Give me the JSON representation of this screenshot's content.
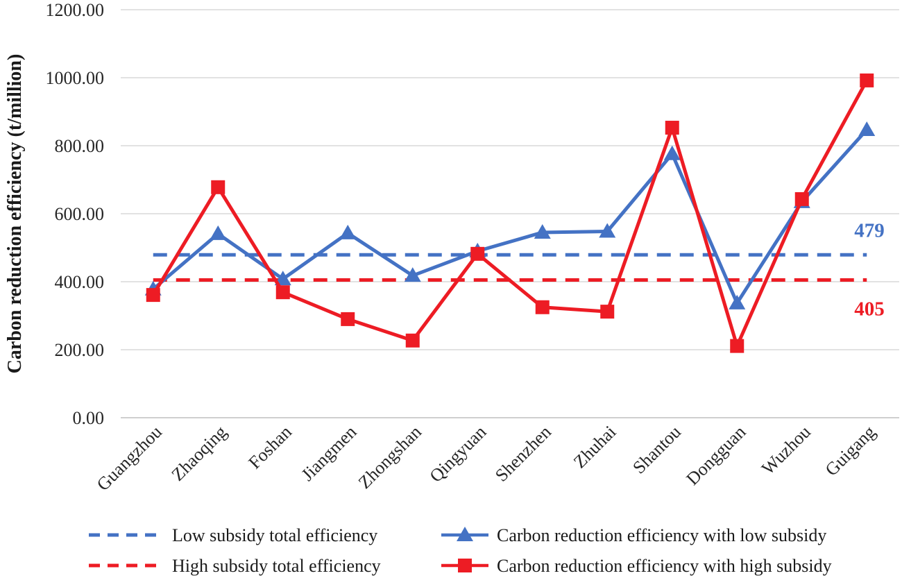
{
  "chart_data": {
    "type": "line",
    "title": "",
    "xlabel": "",
    "ylabel": "Carbon reduction efficiency (t/million)",
    "ylim": [
      0,
      1200
    ],
    "ytick_step": 200,
    "ytick_labels": [
      "0.00",
      "200.00",
      "400.00",
      "600.00",
      "800.00",
      "1000.00",
      "1200.00"
    ],
    "grid": true,
    "legend_position": "bottom",
    "categories": [
      "Guangzhou",
      "Zhaoqing",
      "Foshan",
      "Jiangmen",
      "Zhongshan",
      "Qingyuan",
      "Shenzhen",
      "Zhuhai",
      "Shantou",
      "Dongguan",
      "Wuzhou",
      "Guigang"
    ],
    "series": [
      {
        "name": "Carbon reduction efficiency with low subsidy",
        "color": "#4472C4",
        "marker": "triangle",
        "line_style": "solid",
        "values": [
          378,
          541,
          408,
          543,
          418,
          490,
          545,
          548,
          776,
          337,
          635,
          847
        ]
      },
      {
        "name": "Carbon reduction efficiency with high subsidy",
        "color": "#ED1C24",
        "marker": "square",
        "line_style": "solid",
        "values": [
          361,
          678,
          369,
          290,
          227,
          482,
          325,
          312,
          853,
          211,
          643,
          992
        ]
      }
    ],
    "reference_lines": [
      {
        "name": "Low subsidy total efficiency",
        "color": "#4472C4",
        "line_style": "dashed",
        "value": 479,
        "annotation": "479"
      },
      {
        "name": "High subsidy total efficiency",
        "color": "#ED1C24",
        "line_style": "dashed",
        "value": 405,
        "annotation": "405"
      }
    ],
    "legend": [
      {
        "label": "Low subsidy total efficiency",
        "swatch": "dashed",
        "color": "#4472C4"
      },
      {
        "label": "High subsidy total efficiency",
        "swatch": "dashed",
        "color": "#ED1C24"
      },
      {
        "label": "Carbon reduction efficiency with low subsidy",
        "swatch": "line-triangle",
        "color": "#4472C4"
      },
      {
        "label": "Carbon reduction efficiency with high subsidy",
        "swatch": "line-square",
        "color": "#ED1C24"
      }
    ],
    "colors": {
      "gridline": "#D9D9D9",
      "baseline": "#BFBFBF",
      "text": "#262626"
    }
  }
}
